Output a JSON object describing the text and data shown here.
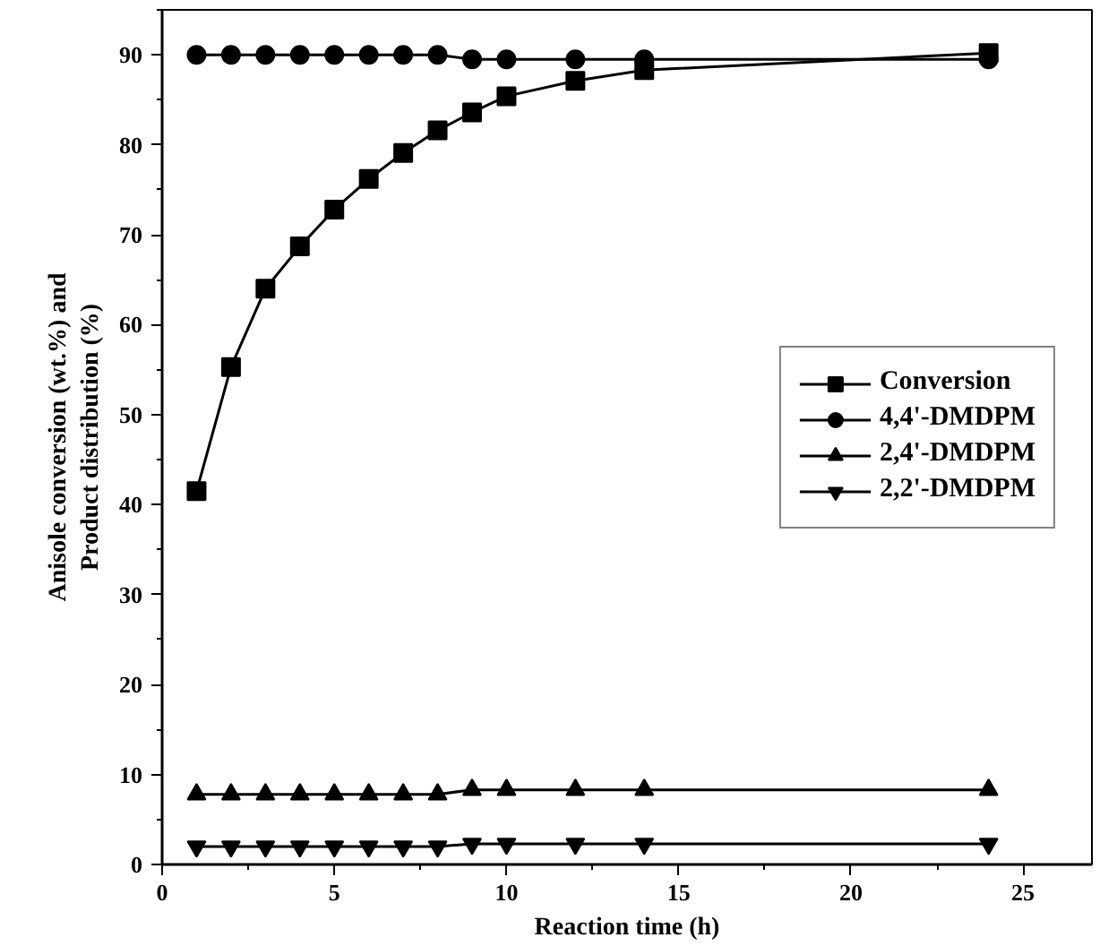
{
  "chart_data": {
    "type": "line",
    "xlabel": "Reaction time (h)",
    "ylabel": "Anisole conversion (wt.%) and\nProduct distribution (%)",
    "x": [
      1,
      2,
      3,
      4,
      5,
      6,
      7,
      8,
      9,
      10,
      12,
      14,
      24
    ],
    "xlim": [
      0,
      27
    ],
    "xticks": [
      0,
      5,
      10,
      15,
      20,
      25
    ],
    "ylim": [
      0,
      95
    ],
    "yticks": [
      0,
      10,
      20,
      30,
      40,
      50,
      60,
      70,
      80,
      90
    ],
    "legend": "right",
    "grid": false,
    "series": [
      {
        "name": "Conversion",
        "color": "#000000",
        "marker": "square",
        "values": [
          41.5,
          55.3,
          64,
          68.7,
          72.8,
          76.2,
          79.1,
          81.6,
          83.6,
          85.4,
          87.1,
          88.3,
          90.2
        ]
      },
      {
        "name": "4,4'-DMDPM",
        "color": "#000000",
        "marker": "circle",
        "values": [
          90,
          90,
          90,
          90,
          90,
          90,
          90,
          90,
          89.5,
          89.5,
          89.5,
          89.5,
          89.5
        ]
      },
      {
        "name": "2,4'-DMDPM",
        "color": "#000000",
        "marker": "triangle",
        "values": [
          7.8,
          7.8,
          7.8,
          7.8,
          7.8,
          7.8,
          7.8,
          7.8,
          8.3,
          8.3,
          8.3,
          8.3,
          8.3
        ]
      },
      {
        "name": "2,2'-DMDPM",
        "color": "#000000",
        "marker": "triangle",
        "values": [
          2,
          2,
          2,
          2,
          2,
          2,
          2,
          2,
          2.3,
          2.3,
          2.3,
          2.3,
          2.3
        ]
      }
    ]
  }
}
